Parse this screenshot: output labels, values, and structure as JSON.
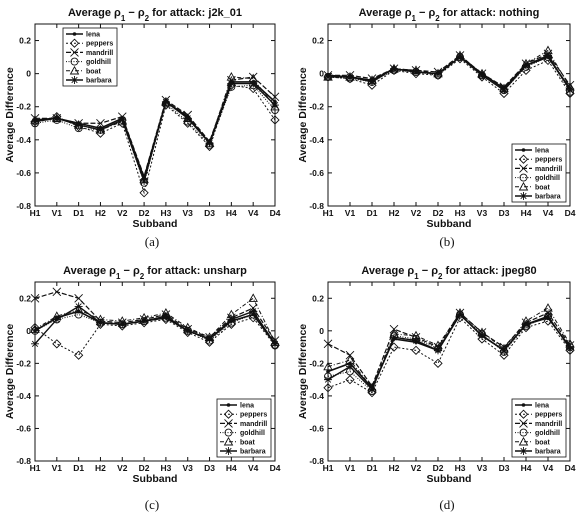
{
  "chart_data": [
    {
      "type": "line",
      "caption": "(a)",
      "title_prefix": "Average ρ",
      "title_sub1": "1",
      "title_mid": " − ρ",
      "title_sub2": "2",
      "title_suffix": " for attack: j2k_01",
      "xlabel": "Subband",
      "ylabel": "Average Difference",
      "ylim": [
        -0.8,
        0.3
      ],
      "yticks": [
        -0.8,
        -0.6,
        -0.4,
        -0.2,
        0,
        0.2
      ],
      "ytick_labels": [
        "-0.8",
        "-0.6",
        "-0.4",
        "-0.2",
        "0",
        "0.2"
      ],
      "categories": [
        "H1",
        "V1",
        "D1",
        "H2",
        "V2",
        "D2",
        "H3",
        "V3",
        "D3",
        "H4",
        "V4",
        "D4"
      ],
      "legend_position": "top-left",
      "series": [
        {
          "name": "lena",
          "values": [
            -0.28,
            -0.27,
            -0.3,
            -0.33,
            -0.27,
            -0.63,
            -0.17,
            -0.26,
            -0.42,
            -0.05,
            -0.05,
            -0.17
          ]
        },
        {
          "name": "peppers",
          "values": [
            -0.29,
            -0.26,
            -0.32,
            -0.36,
            -0.3,
            -0.72,
            -0.19,
            -0.3,
            -0.44,
            -0.07,
            -0.09,
            -0.28
          ]
        },
        {
          "name": "mandrill",
          "values": [
            -0.27,
            -0.27,
            -0.3,
            -0.3,
            -0.26,
            -0.62,
            -0.16,
            -0.25,
            -0.41,
            -0.04,
            -0.02,
            -0.14
          ]
        },
        {
          "name": "goldhill",
          "values": [
            -0.3,
            -0.28,
            -0.33,
            -0.34,
            -0.28,
            -0.66,
            -0.18,
            -0.29,
            -0.43,
            -0.08,
            -0.07,
            -0.22
          ]
        },
        {
          "name": "boat",
          "values": [
            -0.28,
            -0.27,
            -0.31,
            -0.34,
            -0.29,
            -0.64,
            -0.17,
            -0.27,
            -0.42,
            -0.02,
            -0.03,
            -0.2
          ]
        },
        {
          "name": "barbara",
          "values": [
            -0.29,
            -0.27,
            -0.31,
            -0.34,
            -0.28,
            -0.65,
            -0.17,
            -0.27,
            -0.42,
            -0.06,
            -0.06,
            -0.19
          ]
        }
      ]
    },
    {
      "type": "line",
      "caption": "(b)",
      "title_prefix": "Average ρ",
      "title_sub1": "1",
      "title_mid": " − ρ",
      "title_sub2": "2",
      "title_suffix": " for attack: nothing",
      "xlabel": "Subband",
      "ylabel": "Average Difference",
      "ylim": [
        -0.8,
        0.3
      ],
      "yticks": [
        -0.8,
        -0.6,
        -0.4,
        -0.2,
        0,
        0.2
      ],
      "ytick_labels": [
        "-0.8",
        "-0.6",
        "-0.4",
        "-0.2",
        "0",
        "0.2"
      ],
      "categories": [
        "H1",
        "V1",
        "D1",
        "H2",
        "V2",
        "D2",
        "H3",
        "V3",
        "D3",
        "H4",
        "V4",
        "D4"
      ],
      "legend_position": "bottom-right",
      "series": [
        {
          "name": "lena",
          "values": [
            -0.01,
            -0.02,
            -0.04,
            0.03,
            0.01,
            0.0,
            0.1,
            0.0,
            -0.09,
            0.05,
            0.1,
            -0.09
          ]
        },
        {
          "name": "peppers",
          "values": [
            -0.02,
            -0.03,
            -0.07,
            0.02,
            0.0,
            -0.01,
            0.09,
            -0.02,
            -0.12,
            0.02,
            0.08,
            -0.12
          ]
        },
        {
          "name": "mandrill",
          "values": [
            -0.01,
            -0.01,
            -0.03,
            0.03,
            0.02,
            0.01,
            0.11,
            0.0,
            -0.08,
            0.06,
            0.12,
            -0.07
          ]
        },
        {
          "name": "goldhill",
          "values": [
            -0.02,
            -0.03,
            -0.05,
            0.02,
            0.01,
            -0.01,
            0.1,
            -0.01,
            -0.1,
            0.04,
            0.1,
            -0.11
          ]
        },
        {
          "name": "boat",
          "values": [
            -0.02,
            -0.02,
            -0.04,
            0.03,
            0.02,
            0.0,
            0.11,
            0.0,
            -0.09,
            0.06,
            0.14,
            -0.08
          ]
        },
        {
          "name": "barbara",
          "values": [
            -0.02,
            -0.02,
            -0.05,
            0.03,
            0.01,
            0.0,
            0.1,
            -0.01,
            -0.1,
            0.05,
            0.11,
            -0.1
          ]
        }
      ]
    },
    {
      "type": "line",
      "caption": "(c)",
      "title_prefix": "Average ρ",
      "title_sub1": "1",
      "title_mid": " − ρ",
      "title_sub2": "2",
      "title_suffix": " for attack: unsharp",
      "xlabel": "Subband",
      "ylabel": "Average Difference",
      "ylim": [
        -0.8,
        0.3
      ],
      "yticks": [
        -0.8,
        -0.6,
        -0.4,
        -0.2,
        0,
        0.2
      ],
      "ytick_labels": [
        "-0.8",
        "-0.6",
        "-0.4",
        "-0.2",
        "0",
        "0.2"
      ],
      "categories": [
        "H1",
        "V1",
        "D1",
        "H2",
        "V2",
        "D2",
        "H3",
        "V3",
        "D3",
        "H4",
        "V4",
        "D4"
      ],
      "legend_position": "bottom-right",
      "series": [
        {
          "name": "lena",
          "values": [
            0.0,
            0.08,
            0.12,
            0.05,
            0.04,
            0.06,
            0.08,
            0.0,
            -0.05,
            0.06,
            0.1,
            -0.08
          ]
        },
        {
          "name": "peppers",
          "values": [
            0.02,
            -0.08,
            -0.15,
            0.04,
            0.03,
            0.05,
            0.07,
            -0.01,
            -0.07,
            0.04,
            0.08,
            -0.09
          ]
        },
        {
          "name": "mandrill",
          "values": [
            0.2,
            0.24,
            0.2,
            0.06,
            0.05,
            0.07,
            0.1,
            0.01,
            -0.04,
            0.08,
            0.14,
            -0.06
          ]
        },
        {
          "name": "goldhill",
          "values": [
            0.0,
            0.07,
            0.1,
            0.05,
            0.04,
            0.06,
            0.08,
            0.0,
            -0.06,
            0.05,
            0.1,
            -0.09
          ]
        },
        {
          "name": "boat",
          "values": [
            0.01,
            0.09,
            0.13,
            0.07,
            0.06,
            0.08,
            0.11,
            0.02,
            -0.04,
            0.1,
            0.2,
            -0.07
          ]
        },
        {
          "name": "barbara",
          "values": [
            -0.08,
            0.07,
            0.15,
            0.05,
            0.04,
            0.06,
            0.09,
            0.0,
            -0.05,
            0.07,
            0.12,
            -0.08
          ]
        }
      ]
    },
    {
      "type": "line",
      "caption": "(d)",
      "title_prefix": "Average ρ",
      "title_sub1": "1",
      "title_mid": " − ρ",
      "title_sub2": "2",
      "title_suffix": " for attack: jpeg80",
      "xlabel": "Subband",
      "ylabel": "Average Difference",
      "ylim": [
        -0.8,
        0.3
      ],
      "yticks": [
        -0.8,
        -0.6,
        -0.4,
        -0.2,
        0,
        0.2
      ],
      "ytick_labels": [
        "-0.8",
        "-0.6",
        "-0.4",
        "-0.2",
        "0",
        "0.2"
      ],
      "categories": [
        "H1",
        "V1",
        "D1",
        "H2",
        "V2",
        "D2",
        "H3",
        "V3",
        "D3",
        "H4",
        "V4",
        "D4"
      ],
      "legend_position": "bottom-right",
      "series": [
        {
          "name": "lena",
          "values": [
            -0.25,
            -0.2,
            -0.35,
            -0.05,
            -0.07,
            -0.12,
            0.1,
            -0.03,
            -0.12,
            0.04,
            0.08,
            -0.1
          ]
        },
        {
          "name": "peppers",
          "values": [
            -0.35,
            -0.3,
            -0.38,
            -0.1,
            -0.12,
            -0.2,
            0.08,
            -0.05,
            -0.15,
            0.02,
            0.06,
            -0.12
          ]
        },
        {
          "name": "mandrill",
          "values": [
            -0.08,
            -0.15,
            -0.34,
            0.01,
            -0.04,
            -0.1,
            0.11,
            -0.01,
            -0.1,
            0.05,
            0.11,
            -0.09
          ]
        },
        {
          "name": "goldhill",
          "values": [
            -0.28,
            -0.25,
            -0.37,
            -0.03,
            -0.05,
            -0.11,
            0.1,
            -0.02,
            -0.13,
            0.03,
            0.09,
            -0.1
          ]
        },
        {
          "name": "boat",
          "values": [
            -0.22,
            -0.18,
            -0.35,
            -0.02,
            -0.03,
            -0.09,
            0.11,
            -0.01,
            -0.11,
            0.06,
            0.14,
            -0.08
          ]
        },
        {
          "name": "barbara",
          "values": [
            -0.3,
            -0.22,
            -0.36,
            -0.04,
            -0.06,
            -0.12,
            0.1,
            -0.03,
            -0.12,
            0.04,
            0.09,
            -0.11
          ]
        }
      ]
    }
  ]
}
